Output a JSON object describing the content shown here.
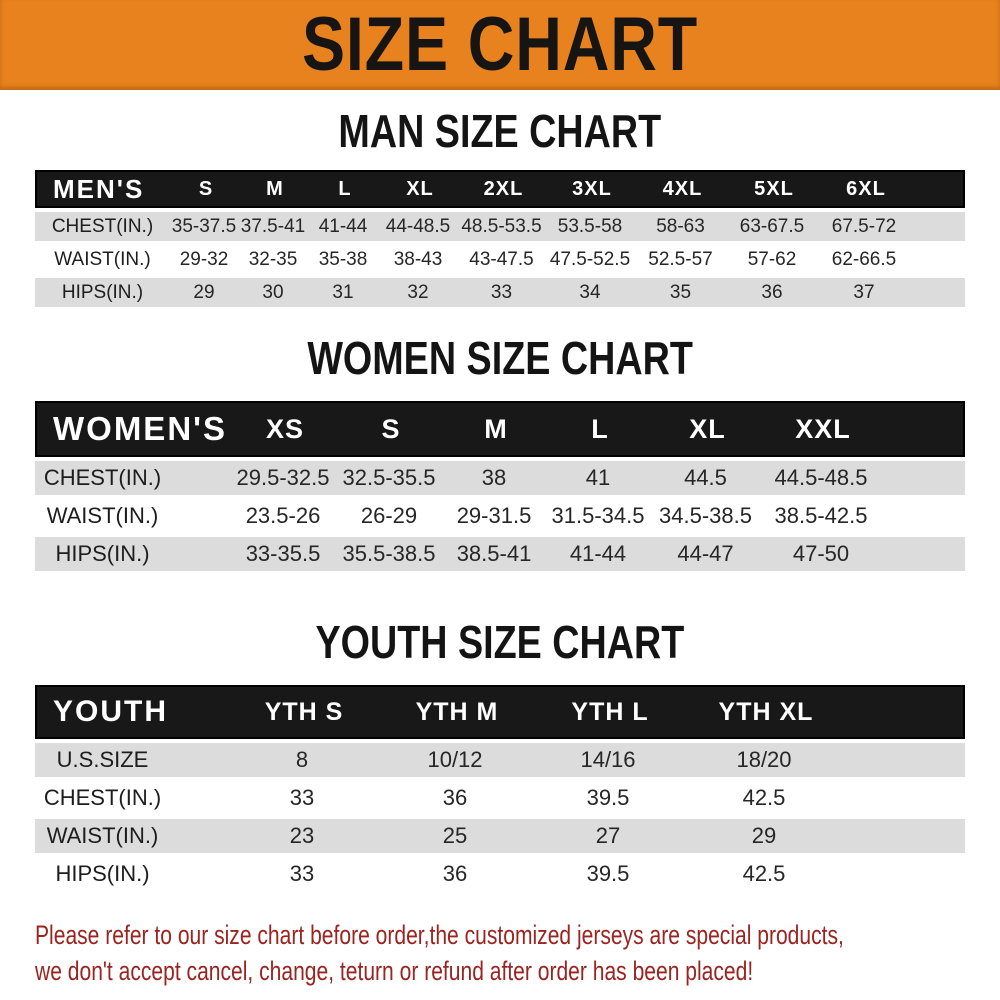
{
  "banner": {
    "title": "SIZE CHART"
  },
  "colors": {
    "banner_bg": "#E8821E",
    "table_header_bg": "#181818",
    "row_alt_bg": "#DCDCDC",
    "disclaimer_text": "#9B2420"
  },
  "sections": [
    {
      "heading": "MAN SIZE CHART",
      "header_label": "MEN'S",
      "columns": [
        "S",
        "M",
        "L",
        "XL",
        "2XL",
        "3XL",
        "4XL",
        "5XL",
        "6XL"
      ],
      "rows": [
        {
          "label": "CHEST(IN.)",
          "values": [
            "35-37.5",
            "37.5-41",
            "41-44",
            "44-48.5",
            "48.5-53.5",
            "53.5-58",
            "58-63",
            "63-67.5",
            "67.5-72"
          ]
        },
        {
          "label": "WAIST(IN.)",
          "values": [
            "29-32",
            "32-35",
            "35-38",
            "38-43",
            "43-47.5",
            "47.5-52.5",
            "52.5-57",
            "57-62",
            "62-66.5"
          ]
        },
        {
          "label": "HIPS(IN.)",
          "values": [
            "29",
            "30",
            "31",
            "32",
            "33",
            "34",
            "35",
            "36",
            "37"
          ]
        }
      ]
    },
    {
      "heading": "WOMEN SIZE CHART",
      "header_label": "WOMEN'S",
      "columns": [
        "XS",
        "S",
        "M",
        "L",
        "XL",
        "XXL"
      ],
      "rows": [
        {
          "label": "CHEST(IN.)",
          "values": [
            "29.5-32.5",
            "32.5-35.5",
            "38",
            "41",
            "44.5",
            "44.5-48.5"
          ]
        },
        {
          "label": "WAIST(IN.)",
          "values": [
            "23.5-26",
            "26-29",
            "29-31.5",
            "31.5-34.5",
            "34.5-38.5",
            "38.5-42.5"
          ]
        },
        {
          "label": "HIPS(IN.)",
          "values": [
            "33-35.5",
            "35.5-38.5",
            "38.5-41",
            "41-44",
            "44-47",
            "47-50"
          ]
        }
      ]
    },
    {
      "heading": "YOUTH SIZE CHART",
      "header_label": "YOUTH",
      "columns": [
        "YTH S",
        "YTH M",
        "YTH L",
        "YTH XL"
      ],
      "rows": [
        {
          "label": "U.S.SIZE",
          "values": [
            "8",
            "10/12",
            "14/16",
            "18/20"
          ]
        },
        {
          "label": "CHEST(IN.)",
          "values": [
            "33",
            "36",
            "39.5",
            "42.5"
          ]
        },
        {
          "label": "WAIST(IN.)",
          "values": [
            "23",
            "25",
            "27",
            "29"
          ]
        },
        {
          "label": "HIPS(IN.)",
          "values": [
            "33",
            "36",
            "39.5",
            "42.5"
          ]
        }
      ]
    }
  ],
  "disclaimer": {
    "line1": "Please refer to our size chart before order,the customized jerseys are special products,",
    "line2": "we don't accept cancel, change, teturn or refund after order has been placed!"
  }
}
